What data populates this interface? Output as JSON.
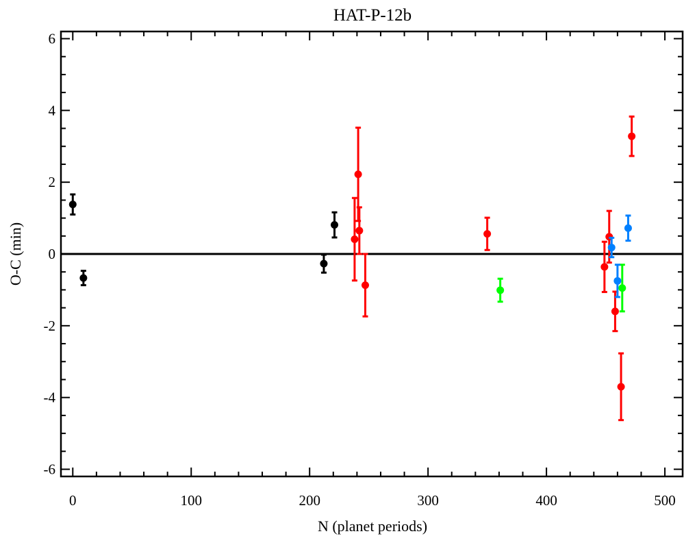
{
  "chart_data": {
    "type": "scatter",
    "title": "HAT-P-12b",
    "xlabel": "N (planet periods)",
    "ylabel": "O-C (min)",
    "xlim": [
      -10,
      515
    ],
    "ylim": [
      -6.2,
      6.2
    ],
    "xticks": [
      0,
      100,
      200,
      300,
      400,
      500
    ],
    "xtick_labels": [
      "0",
      "100",
      "200",
      "300",
      "400",
      "500"
    ],
    "yticks": [
      -6,
      -4,
      -2,
      0,
      2,
      4,
      6
    ],
    "ytick_labels": [
      "-6",
      "-4",
      "-2",
      "0",
      "2",
      "4",
      "6"
    ],
    "x_minor_step": 20,
    "y_minor_step": 0.5,
    "reference_line_y": 0,
    "grid": false,
    "series": [
      {
        "color": "#000000",
        "points": [
          {
            "x": 0,
            "y": 1.38,
            "err": 0.28
          },
          {
            "x": 9,
            "y": -0.67,
            "err": 0.2
          },
          {
            "x": 212,
            "y": -0.27,
            "err": 0.25
          },
          {
            "x": 221,
            "y": 0.81,
            "err": 0.35
          }
        ]
      },
      {
        "color": "#ff0000",
        "points": [
          {
            "x": 238,
            "y": 0.41,
            "err": 1.15
          },
          {
            "x": 241,
            "y": 2.22,
            "err": 1.3
          },
          {
            "x": 242,
            "y": 0.65,
            "err": 0.65
          },
          {
            "x": 247,
            "y": -0.87,
            "err": 0.87
          },
          {
            "x": 350,
            "y": 0.56,
            "err": 0.45
          },
          {
            "x": 449,
            "y": -0.36,
            "err": 0.7
          },
          {
            "x": 453,
            "y": 0.48,
            "err": 0.72
          },
          {
            "x": 458,
            "y": -1.6,
            "err": 0.55
          },
          {
            "x": 463,
            "y": -3.7,
            "err": 0.93
          },
          {
            "x": 472,
            "y": 3.28,
            "err": 0.55
          }
        ]
      },
      {
        "color": "#00ff00",
        "points": [
          {
            "x": 361,
            "y": -1.01,
            "err": 0.32
          },
          {
            "x": 464,
            "y": -0.95,
            "err": 0.65
          }
        ]
      },
      {
        "color": "#0080ff",
        "points": [
          {
            "x": 455,
            "y": 0.18,
            "err": 0.27
          },
          {
            "x": 460,
            "y": -0.75,
            "err": 0.45
          },
          {
            "x": 469,
            "y": 0.72,
            "err": 0.35
          }
        ]
      }
    ]
  }
}
